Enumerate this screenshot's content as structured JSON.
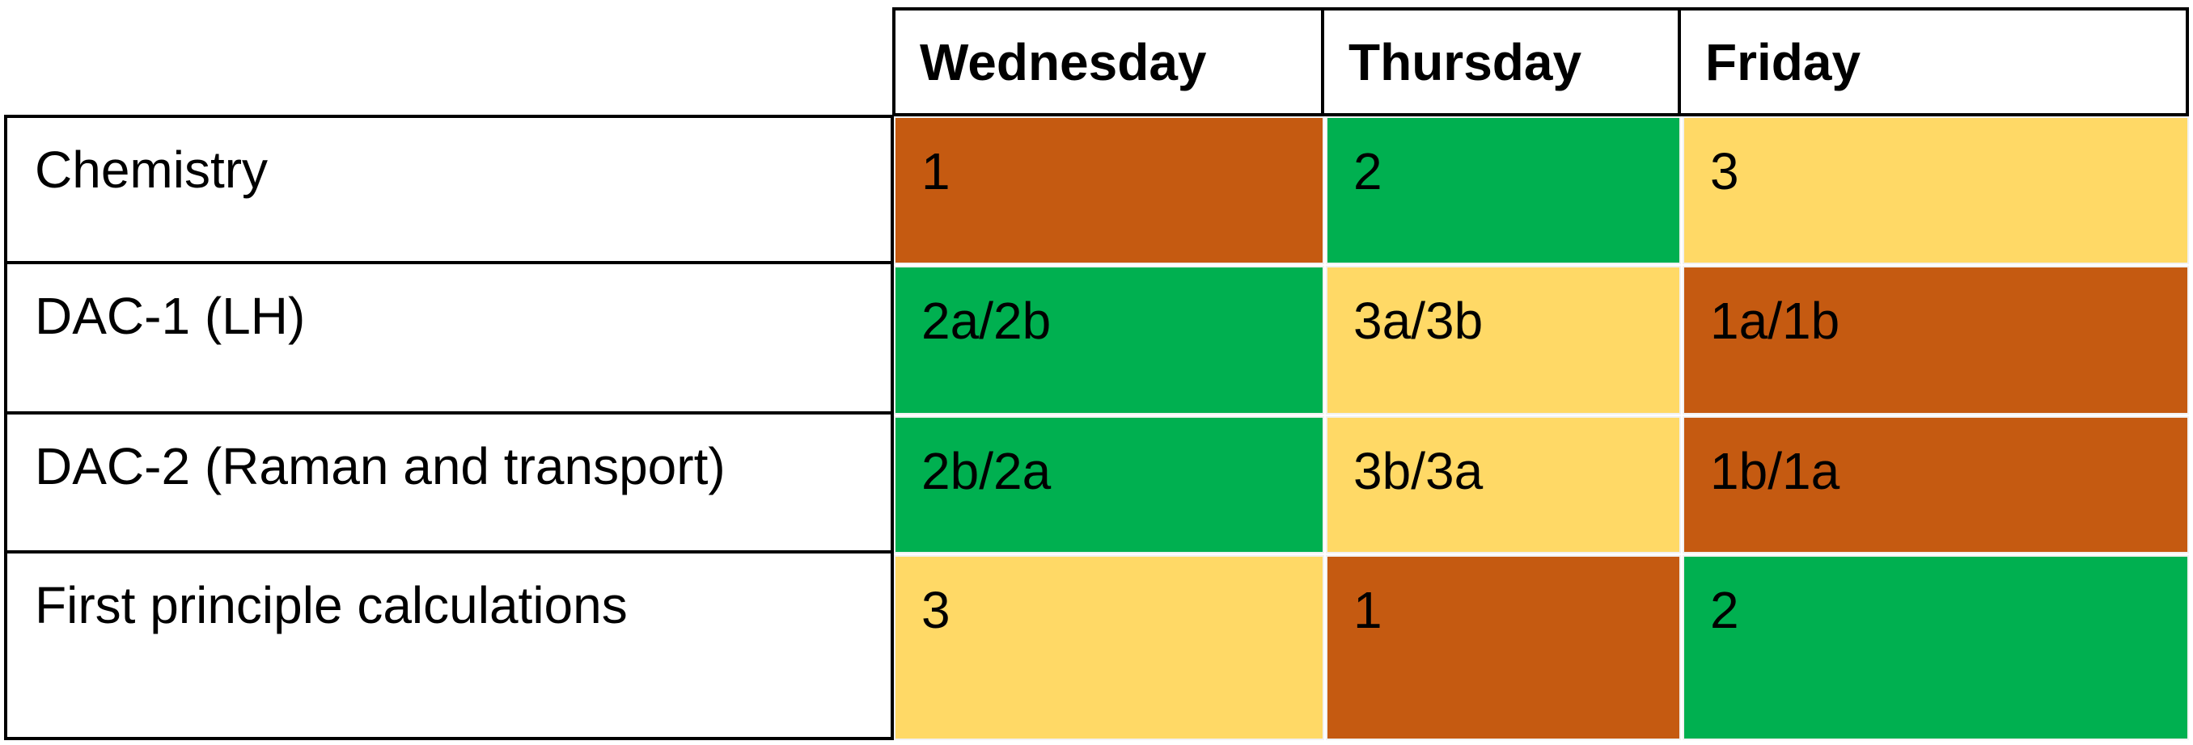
{
  "table": {
    "header": [
      "Wednesday",
      "Thursday",
      "Friday"
    ],
    "rows": [
      [
        "Chemistry",
        "1",
        "2",
        "3"
      ],
      [
        "DAC-1 (LH)",
        "2a/2b",
        "3a/3b",
        "1a/1b"
      ],
      [
        "DAC-2 (Raman and transport)",
        "2b/2a",
        "3b/3a",
        "1b/1a"
      ],
      [
        "First principle calculations",
        "3",
        "1",
        "2"
      ]
    ]
  }
}
